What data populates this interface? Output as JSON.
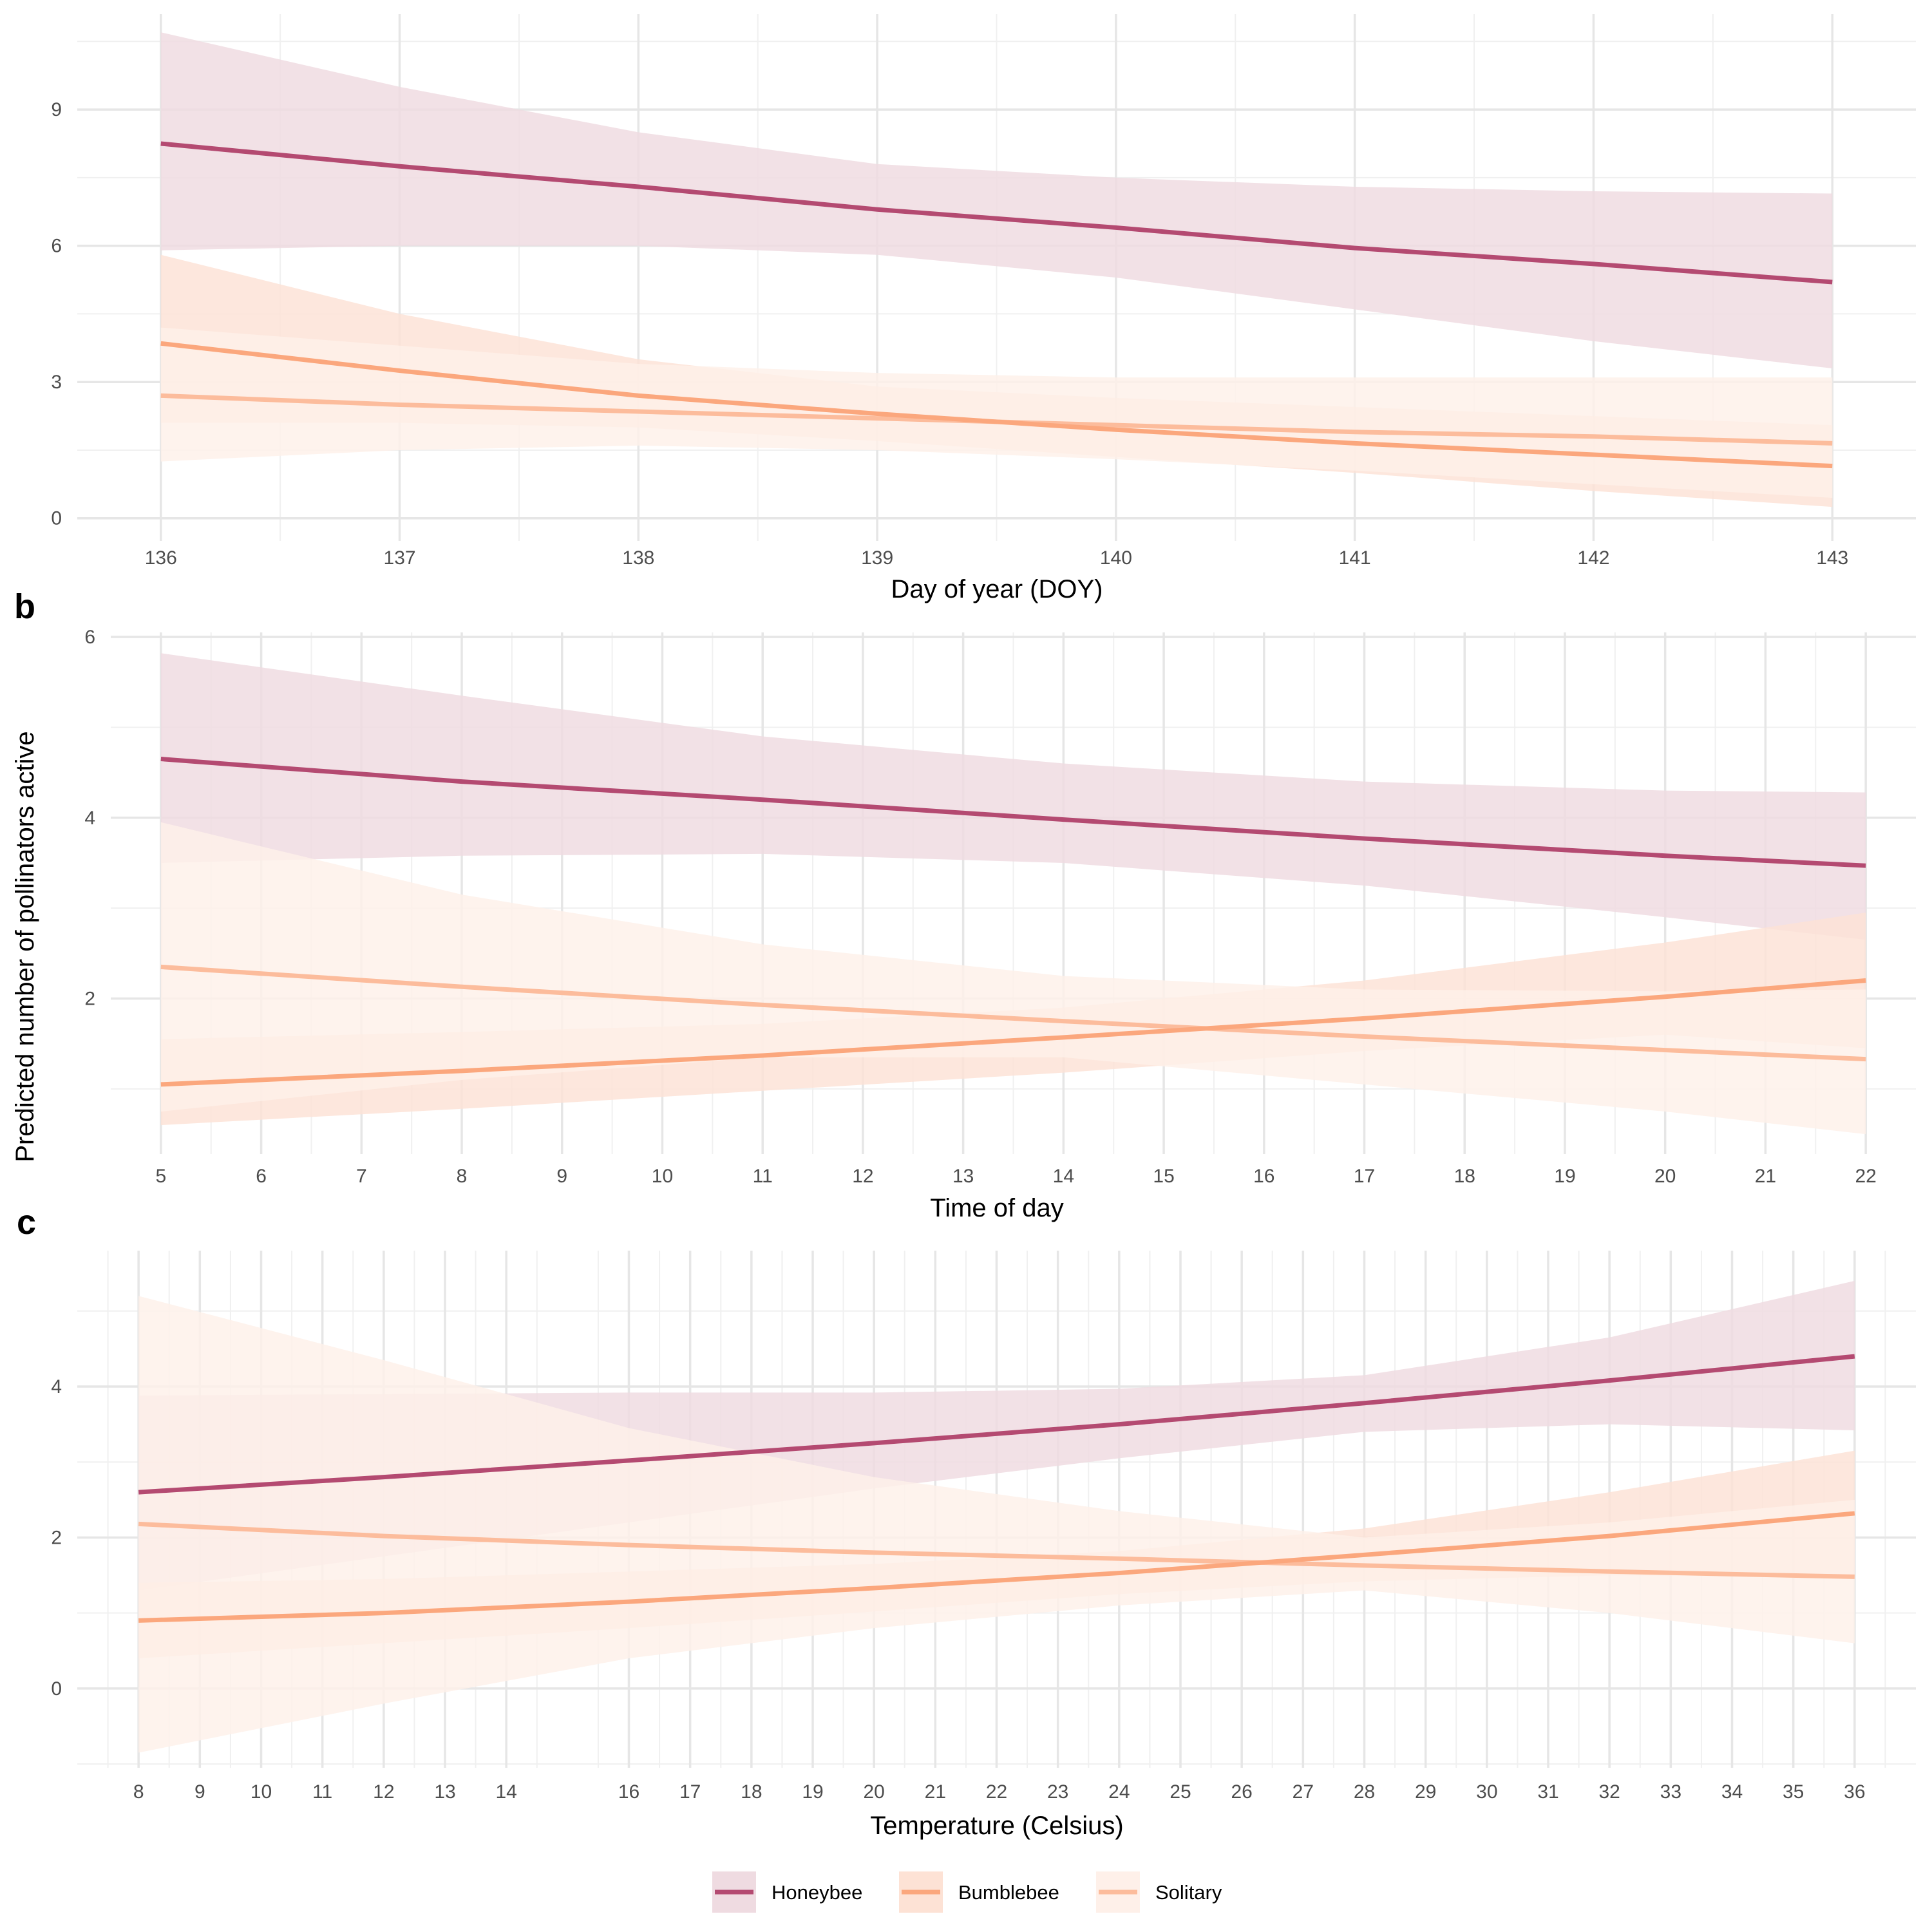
{
  "figure": {
    "ylabel": "Predicted number of pollinators active",
    "colors": {
      "Honeybee": "#b44a71",
      "Bumblebee": "#fba77d",
      "Solitary": "#fcbc9c"
    },
    "band_colors": {
      "Honeybee": "#efdbe1",
      "Bumblebee": "#fde2d5",
      "Solitary": "#fef0e9"
    }
  },
  "legend": {
    "items": [
      {
        "label": "Honeybee",
        "icon": "line-with-band"
      },
      {
        "label": "Bumblebee",
        "icon": "line-with-band"
      },
      {
        "label": "Solitary",
        "icon": "line-with-band"
      }
    ]
  },
  "chart_data": [
    {
      "type": "line",
      "panel_label": "",
      "xlabel": "Day of year (DOY)",
      "ylabel": "",
      "xlim": [
        135.65,
        143.35
      ],
      "ylim": [
        -0.5,
        11.1
      ],
      "xticks": [
        136,
        137,
        138,
        139,
        140,
        141,
        142,
        143
      ],
      "xminor": [
        136.5,
        137.5,
        138.5,
        139.5,
        140.5,
        141.5,
        142.5
      ],
      "yticks": [
        0,
        3,
        6,
        9
      ],
      "yminor": [
        1.5,
        4.5,
        7.5,
        10.5
      ],
      "grid": true,
      "series": [
        {
          "name": "Honeybee",
          "x": [
            136,
            137,
            138,
            139,
            140,
            141,
            142,
            143
          ],
          "y": [
            8.25,
            7.75,
            7.3,
            6.8,
            6.4,
            5.95,
            5.6,
            5.2
          ],
          "lower": [
            5.9,
            6.0,
            6.0,
            5.8,
            5.3,
            4.6,
            3.9,
            3.3
          ],
          "upper": [
            10.7,
            9.5,
            8.5,
            7.8,
            7.5,
            7.3,
            7.2,
            7.15
          ]
        },
        {
          "name": "Bumblebee",
          "x": [
            136,
            137,
            138,
            139,
            140,
            141,
            142,
            143
          ],
          "y": [
            3.85,
            3.25,
            2.7,
            2.3,
            1.95,
            1.65,
            1.4,
            1.15
          ],
          "lower": [
            2.1,
            2.1,
            2.0,
            1.7,
            1.35,
            1.0,
            0.6,
            0.25
          ],
          "upper": [
            5.8,
            4.5,
            3.5,
            2.9,
            2.65,
            2.45,
            2.25,
            2.05
          ]
        },
        {
          "name": "Solitary",
          "x": [
            136,
            137,
            138,
            139,
            140,
            141,
            142,
            143
          ],
          "y": [
            2.7,
            2.5,
            2.35,
            2.2,
            2.05,
            1.9,
            1.8,
            1.65
          ],
          "lower": [
            1.25,
            1.5,
            1.6,
            1.5,
            1.3,
            1.05,
            0.75,
            0.45
          ],
          "upper": [
            4.2,
            3.8,
            3.4,
            3.2,
            3.1,
            3.1,
            3.1,
            3.1
          ]
        }
      ]
    },
    {
      "type": "line",
      "panel_label": "b",
      "xlabel": "Time of day",
      "ylabel": "",
      "xlim": [
        4.5,
        22.5
      ],
      "ylim": [
        0.28,
        6.05
      ],
      "xticks": [
        5,
        6,
        7,
        8,
        9,
        10,
        11,
        12,
        13,
        14,
        15,
        16,
        17,
        18,
        19,
        20,
        21,
        22
      ],
      "xminor": [
        5.5,
        6.5,
        7.5,
        8.5,
        9.5,
        10.5,
        11.5,
        12.5,
        13.5,
        14.5,
        15.5,
        16.5,
        17.5,
        18.5,
        19.5,
        20.5,
        21.5
      ],
      "yticks": [
        2,
        4,
        6
      ],
      "yminor": [
        1,
        3,
        5
      ],
      "grid": true,
      "series": [
        {
          "name": "Honeybee",
          "x": [
            5,
            8,
            11,
            14,
            17,
            20,
            22
          ],
          "y": [
            4.65,
            4.4,
            4.2,
            3.98,
            3.77,
            3.58,
            3.47
          ],
          "lower": [
            3.5,
            3.58,
            3.6,
            3.5,
            3.25,
            2.9,
            2.65
          ],
          "upper": [
            5.82,
            5.35,
            4.9,
            4.6,
            4.4,
            4.3,
            4.28
          ]
        },
        {
          "name": "Bumblebee",
          "x": [
            5,
            8,
            11,
            14,
            17,
            20,
            22
          ],
          "y": [
            1.05,
            1.2,
            1.37,
            1.57,
            1.78,
            2.02,
            2.2
          ],
          "lower": [
            0.6,
            0.78,
            0.98,
            1.18,
            1.42,
            1.6,
            1.45
          ],
          "upper": [
            1.55,
            1.63,
            1.72,
            1.9,
            2.2,
            2.62,
            2.95
          ]
        },
        {
          "name": "Solitary",
          "x": [
            5,
            8,
            11,
            14,
            17,
            20,
            22
          ],
          "y": [
            2.35,
            2.13,
            1.93,
            1.75,
            1.58,
            1.43,
            1.33
          ],
          "lower": [
            0.75,
            1.1,
            1.35,
            1.35,
            1.05,
            0.75,
            0.5
          ],
          "upper": [
            3.95,
            3.15,
            2.6,
            2.25,
            2.1,
            2.08,
            2.1
          ]
        }
      ]
    },
    {
      "type": "line",
      "panel_label": "c",
      "xlabel": "Temperature (Celsius)",
      "ylabel": "",
      "xlim": [
        7.0,
        37.0
      ],
      "ylim": [
        -1.05,
        5.8
      ],
      "xticks": [
        8,
        9,
        10,
        11,
        12,
        13,
        14,
        16,
        17,
        18,
        19,
        20,
        21,
        22,
        23,
        24,
        25,
        26,
        27,
        28,
        29,
        30,
        31,
        32,
        33,
        34,
        35,
        36
      ],
      "xminor": [
        7.5,
        8.5,
        9.5,
        10.5,
        11.5,
        12.5,
        13.5,
        14.5,
        15.5,
        16.5,
        17.5,
        18.5,
        19.5,
        20.5,
        21.5,
        22.5,
        23.5,
        24.5,
        25.5,
        26.5,
        27.5,
        28.5,
        29.5,
        30.5,
        31.5,
        32.5,
        33.5,
        34.5,
        35.5,
        36.5
      ],
      "yticks": [
        0,
        2,
        4
      ],
      "yminor": [
        -1,
        1,
        3,
        5
      ],
      "grid": true,
      "series": [
        {
          "name": "Honeybee",
          "x": [
            8,
            12,
            16,
            20,
            24,
            28,
            32,
            36
          ],
          "y": [
            2.6,
            2.8,
            3.02,
            3.25,
            3.5,
            3.78,
            4.08,
            4.4
          ],
          "lower": [
            1.3,
            1.75,
            2.2,
            2.65,
            3.05,
            3.4,
            3.5,
            3.42
          ],
          "upper": [
            3.88,
            3.9,
            3.92,
            3.92,
            3.97,
            4.15,
            4.65,
            5.4
          ]
        },
        {
          "name": "Bumblebee",
          "x": [
            8,
            12,
            16,
            20,
            24,
            28,
            32,
            36
          ],
          "y": [
            0.9,
            1.0,
            1.15,
            1.33,
            1.53,
            1.77,
            2.02,
            2.32
          ],
          "lower": [
            0.4,
            0.6,
            0.8,
            1.02,
            1.25,
            1.42,
            1.5,
            1.48
          ],
          "upper": [
            1.4,
            1.45,
            1.55,
            1.65,
            1.82,
            2.12,
            2.6,
            3.15
          ]
        },
        {
          "name": "Solitary",
          "x": [
            8,
            12,
            16,
            20,
            24,
            28,
            32,
            36
          ],
          "y": [
            2.18,
            2.02,
            1.9,
            1.8,
            1.72,
            1.63,
            1.55,
            1.48
          ],
          "lower": [
            -0.85,
            -0.2,
            0.4,
            0.8,
            1.1,
            1.3,
            1.0,
            0.6
          ],
          "upper": [
            5.2,
            4.35,
            3.45,
            2.8,
            2.35,
            2.0,
            2.2,
            2.5
          ]
        }
      ]
    }
  ]
}
